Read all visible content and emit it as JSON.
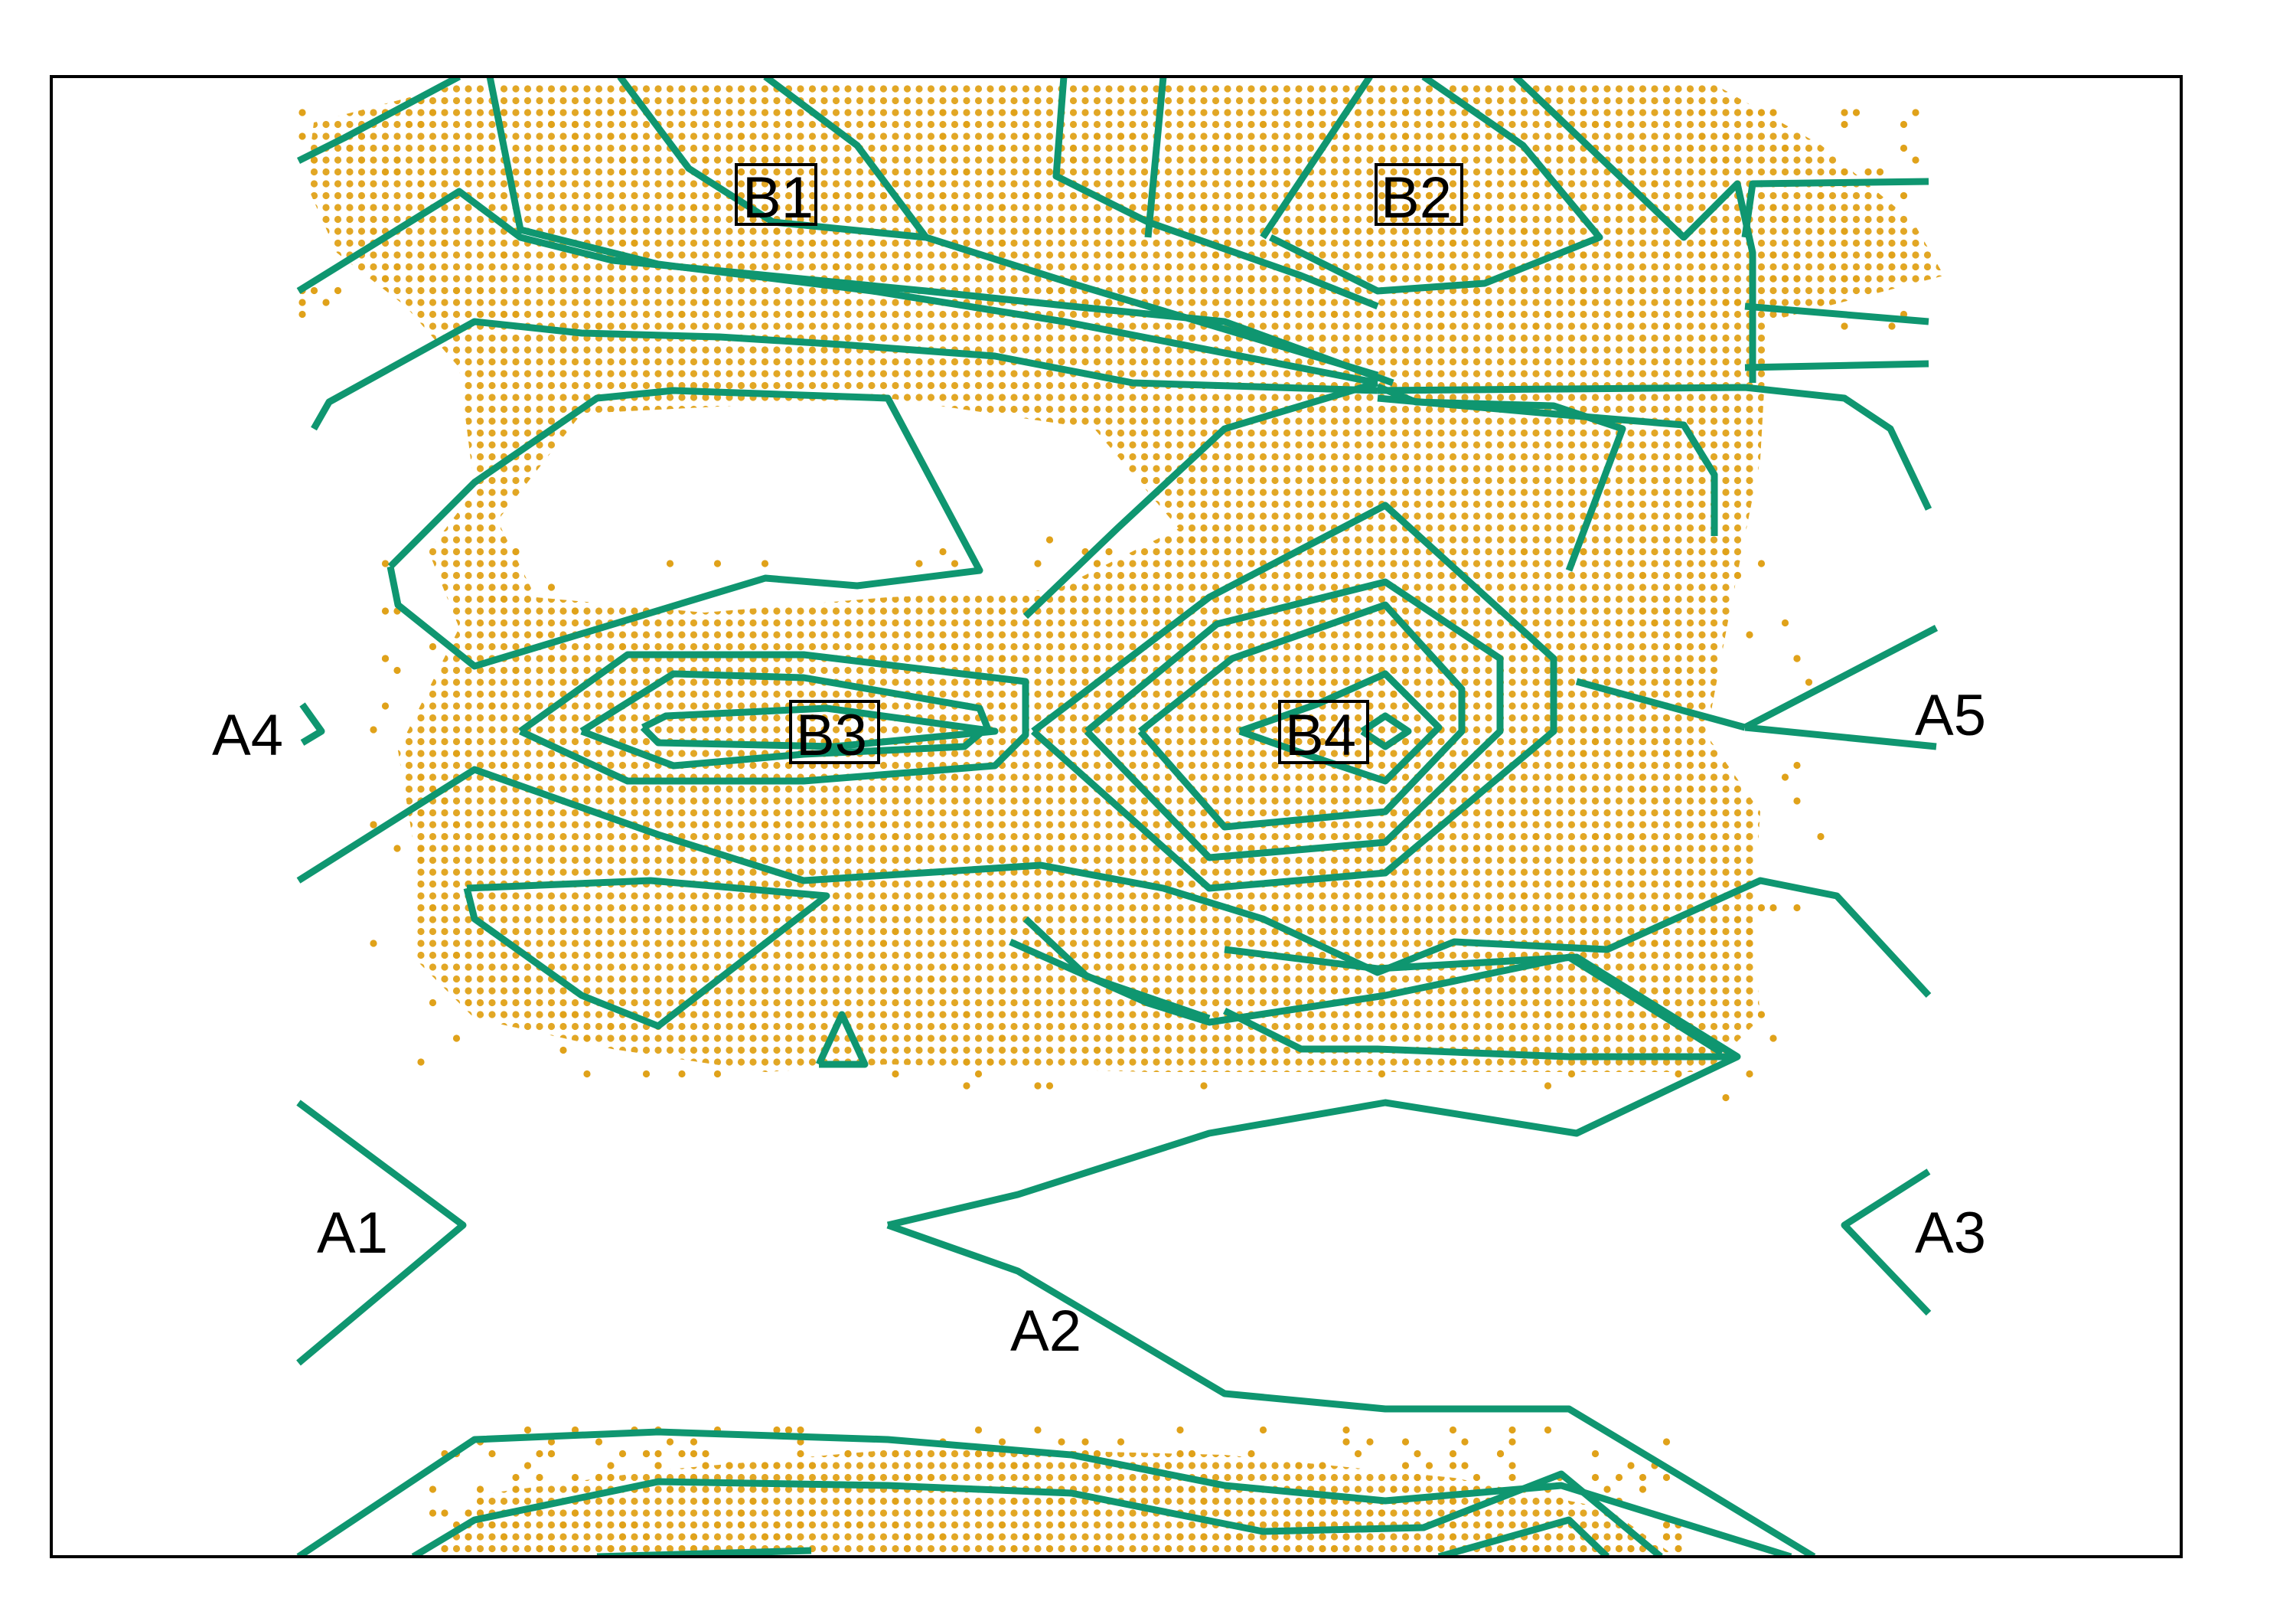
{
  "colors": {
    "contour": "#0f9670",
    "stipple": "#e0a21a",
    "frame": "#000000",
    "background": "#ffffff"
  },
  "labels": {
    "A1": "A1",
    "A2": "A2",
    "A3": "A3",
    "A4": "A4",
    "A5": "A5",
    "B1": "B1",
    "B2": "B2",
    "B3": "B3",
    "B4": "B4"
  }
}
